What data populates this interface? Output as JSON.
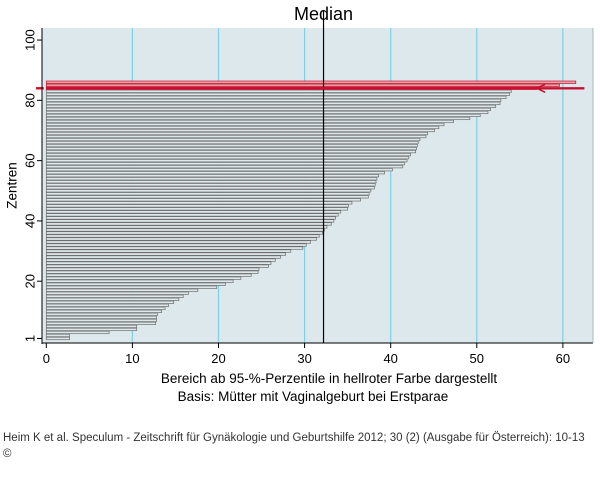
{
  "chart_data": {
    "type": "bar",
    "orientation": "horizontal",
    "title": "Median",
    "xlabel": "Bereich ab 95-%-Perzentile in hellroter Farbe dargestellt",
    "xlabel2": "Basis: Mütter mit Vaginalgeburt bei Erstparae",
    "ylabel": "Zentren",
    "xlim": [
      -0.5,
      63.5
    ],
    "ylim": [
      -0.5,
      104
    ],
    "x_ticks": [
      0,
      10,
      20,
      30,
      40,
      50,
      60
    ],
    "y_ticks": [
      1,
      20,
      40,
      60,
      80,
      100
    ],
    "x_tick_labels": [
      "0",
      "10",
      "20",
      "30",
      "40",
      "50",
      "60"
    ],
    "y_tick_labels": [
      "1",
      "20",
      "40",
      "60",
      "80",
      "100"
    ],
    "grid": true,
    "median": 32.2,
    "marker_value": 57,
    "colors": {
      "plot_background": "#dde8ec",
      "grid": "#7fd0e4",
      "bar_fill": "#dde8ec",
      "bar_edge": "#6e6e6e",
      "highlight_fill": "#e6a2a6",
      "highlight_edge": "#c8102e",
      "marker": "#c8102e",
      "median_line": "#000000"
    },
    "categories": [
      "1",
      "2",
      "3",
      "4",
      "5",
      "6",
      "7",
      "8",
      "9",
      "10",
      "11",
      "12",
      "13",
      "14",
      "15",
      "16",
      "17",
      "18",
      "19",
      "20",
      "21",
      "22",
      "23",
      "24",
      "25",
      "26",
      "27",
      "28",
      "29",
      "30",
      "31",
      "32",
      "33",
      "34",
      "35",
      "36",
      "37",
      "38",
      "39",
      "40",
      "41",
      "42",
      "43",
      "44",
      "45",
      "46",
      "47",
      "48",
      "49",
      "50",
      "51",
      "52",
      "53",
      "54",
      "55",
      "56",
      "57",
      "58",
      "59",
      "60",
      "61",
      "62",
      "63",
      "64",
      "65",
      "66",
      "67",
      "68",
      "69",
      "70",
      "71",
      "72",
      "73",
      "74",
      "75",
      "76",
      "77",
      "78",
      "79",
      "80",
      "81",
      "82",
      "83",
      "84",
      "85",
      "86"
    ],
    "values": [
      2.7,
      2.7,
      7.3,
      10.5,
      10.5,
      12.7,
      12.8,
      12.8,
      12.9,
      13.4,
      13.8,
      14.2,
      14.8,
      15.4,
      15.9,
      16.5,
      17.6,
      19.8,
      20.8,
      21.7,
      22.6,
      23.8,
      24.6,
      24.7,
      25.8,
      26.1,
      26.6,
      27.2,
      27.8,
      28.4,
      29.8,
      30.2,
      30.7,
      31.4,
      31.7,
      32.1,
      32.3,
      32.6,
      33.1,
      33.4,
      33.6,
      33.9,
      34.2,
      35.0,
      35.1,
      35.5,
      36.5,
      37.4,
      37.5,
      37.7,
      38.1,
      38.2,
      38.3,
      38.4,
      38.6,
      39.3,
      40.2,
      41.4,
      41.6,
      41.9,
      42.1,
      42.3,
      42.9,
      43.0,
      43.1,
      43.2,
      43.4,
      44.1,
      44.3,
      45.1,
      45.6,
      46.2,
      47.3,
      49.2,
      50.4,
      51.3,
      51.6,
      52.2,
      52.7,
      52.8,
      53.4,
      53.8,
      54.0,
      57.0,
      59.6,
      61.5
    ],
    "highlighted_from": 84
  },
  "caption": "Heim K et al. Speculum - Zeitschrift für Gynäkologie und Geburtshilfe 2012; 30 (2) (Ausgabe für Österreich): 10-13 ©"
}
